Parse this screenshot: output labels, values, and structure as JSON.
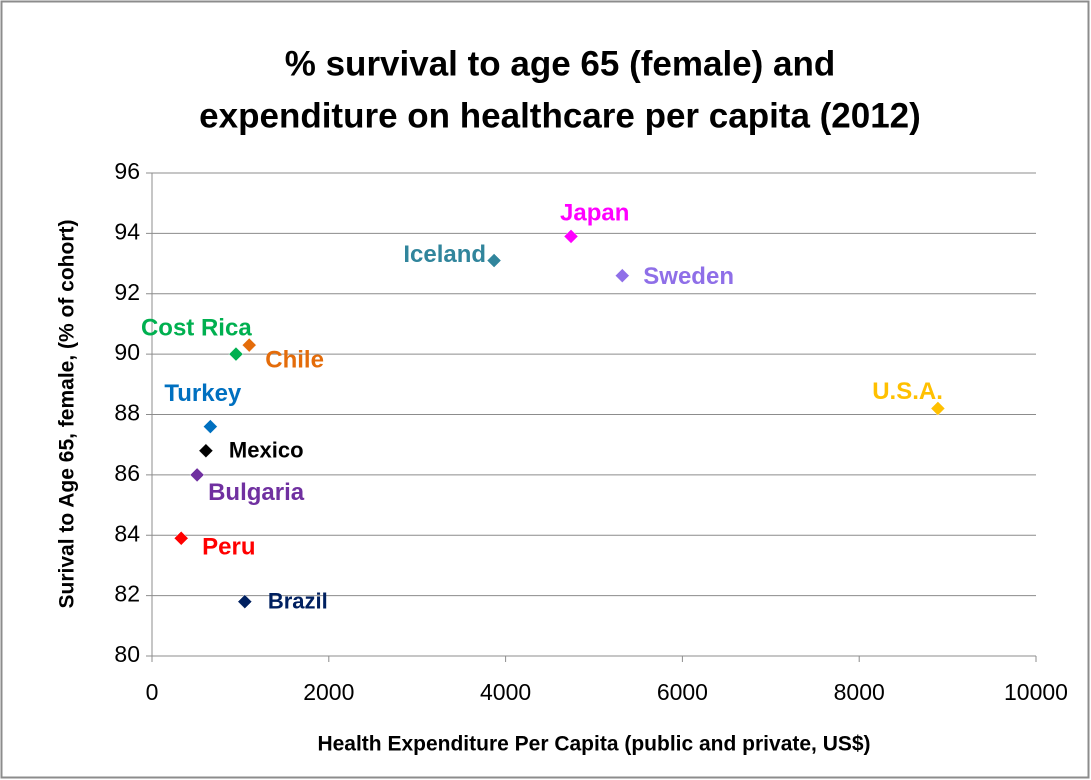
{
  "chart_data": {
    "type": "scatter",
    "title": [
      "% survival to age 65 (female) and",
      "expenditure on healthcare per capita (2012)"
    ],
    "x_label": "Health Expenditure Per Capita (public and private, US$)",
    "y_label": "Surival to Age 65, female, (% of cohort)",
    "xlim": [
      0,
      10000
    ],
    "xticks": [
      0,
      2000,
      4000,
      6000,
      8000,
      10000
    ],
    "ylim": [
      80,
      96
    ],
    "yticks": [
      80,
      82,
      84,
      86,
      88,
      90,
      92,
      94,
      96
    ],
    "grid": true,
    "series": [
      {
        "name": "Iceland",
        "color": "#31859c",
        "x": [
          3870
        ],
        "values": [
          93.1
        ]
      },
      {
        "name": "Japan",
        "color": "#ff00ff",
        "x": [
          4740
        ],
        "values": [
          93.9
        ]
      },
      {
        "name": "Sweden",
        "color": "#8f6fe8",
        "x": [
          5320
        ],
        "values": [
          92.6
        ]
      },
      {
        "name": "Cost Rica",
        "color": "#00b050",
        "x": [
          950
        ],
        "values": [
          90.0
        ]
      },
      {
        "name": "Chile",
        "color": "#e46c0a",
        "x": [
          1100
        ],
        "values": [
          90.3
        ]
      },
      {
        "name": "U.S.A.",
        "color": "#ffc000",
        "x": [
          8890
        ],
        "values": [
          88.2
        ]
      },
      {
        "name": "Turkey",
        "color": "#0070c0",
        "x": [
          660
        ],
        "values": [
          87.6
        ]
      },
      {
        "name": "Mexico",
        "color": "#000000",
        "x": [
          610
        ],
        "values": [
          86.8
        ]
      },
      {
        "name": "Bulgaria",
        "color": "#7030a0",
        "x": [
          510
        ],
        "values": [
          86.0
        ]
      },
      {
        "name": "Peru",
        "color": "#ff0000",
        "x": [
          330
        ],
        "values": [
          83.9
        ]
      },
      {
        "name": "Brazil",
        "color": "#002060",
        "x": [
          1050
        ],
        "values": [
          81.8
        ]
      }
    ]
  }
}
